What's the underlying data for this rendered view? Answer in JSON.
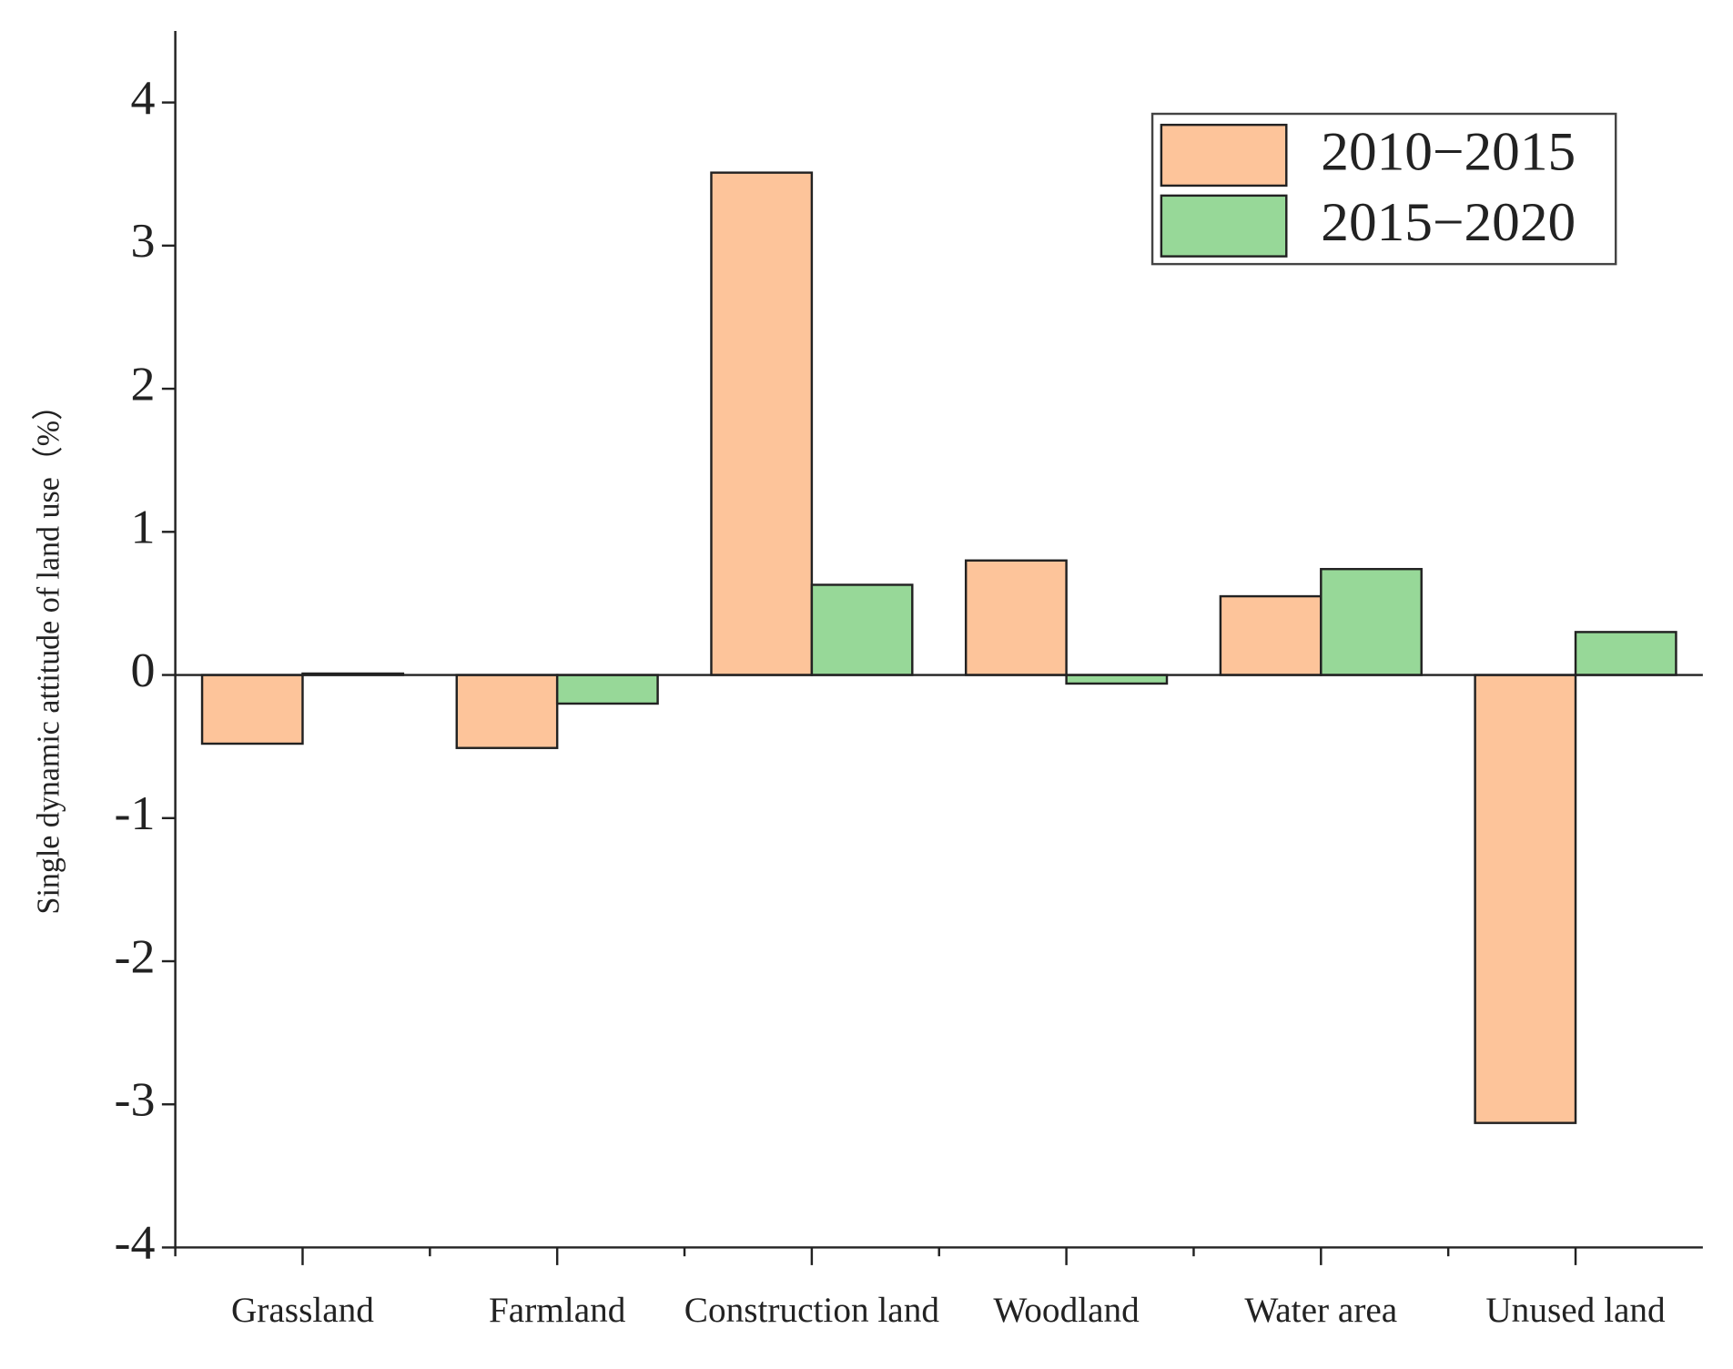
{
  "chart_data": {
    "type": "bar",
    "y_label": "Single dynamic attitude of land use（%）",
    "categories": [
      "Grassland",
      "Farmland",
      "Construction land",
      "Woodland",
      "Water area",
      "Unused land"
    ],
    "series": [
      {
        "name": "2010−2015",
        "color": "#fdc49a",
        "values": [
          -0.48,
          -0.51,
          3.51,
          0.8,
          0.55,
          -3.13
        ]
      },
      {
        "name": "2015−2020",
        "color": "#97d898",
        "values": [
          0.01,
          -0.2,
          0.63,
          -0.06,
          0.74,
          0.3
        ]
      }
    ],
    "ylim": [
      -4,
      4.5
    ],
    "yticks": [
      -4,
      -3,
      -2,
      -1,
      0,
      1,
      2,
      3,
      4
    ],
    "legend": "upper right"
  }
}
